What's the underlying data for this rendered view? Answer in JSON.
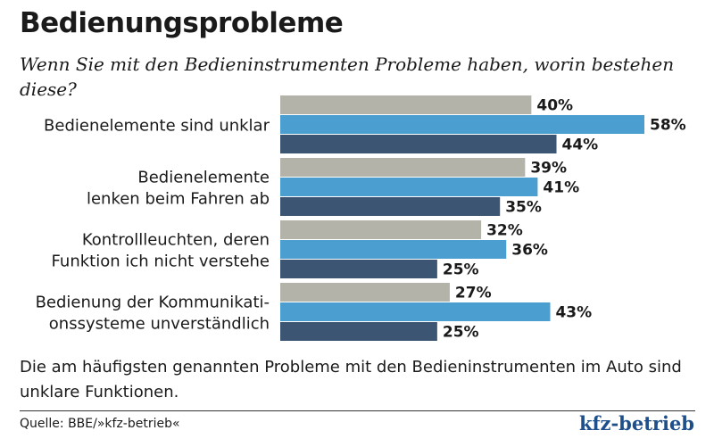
{
  "header": {
    "title": "Bedienungsprobleme",
    "subtitle": "Wenn Sie mit den Bedieninstrumenten Probleme haben, worin bestehen diese?"
  },
  "footer": {
    "note": "Die am häufigsten genannten Probleme mit den Bedieninstrumenten im Auto sind unklare Funktionen.",
    "source": "Quelle: BBE/»kfz-betrieb«",
    "brand": "kfz-betrieb"
  },
  "colors": {
    "series1": "#b3b3aa",
    "series2": "#4a9fd0",
    "series3": "#3c5573"
  },
  "chart_data": {
    "type": "bar",
    "orientation": "horizontal",
    "categories": [
      [
        "Bedienelemente sind unklar"
      ],
      [
        "Bedienelemente",
        "lenken beim Fahren ab"
      ],
      [
        "Kontrollleuchten, deren",
        "Funktion ich nicht verstehe"
      ],
      [
        "Bedienung der Kommunikati-",
        "onssysteme unverständlich"
      ]
    ],
    "series": [
      {
        "values": [
          40,
          39,
          32,
          27
        ]
      },
      {
        "values": [
          58,
          41,
          36,
          43
        ]
      },
      {
        "values": [
          44,
          35,
          25,
          25
        ]
      }
    ],
    "value_suffix": "%",
    "xlim": [
      0,
      58
    ],
    "grid": false,
    "legend": "none"
  }
}
